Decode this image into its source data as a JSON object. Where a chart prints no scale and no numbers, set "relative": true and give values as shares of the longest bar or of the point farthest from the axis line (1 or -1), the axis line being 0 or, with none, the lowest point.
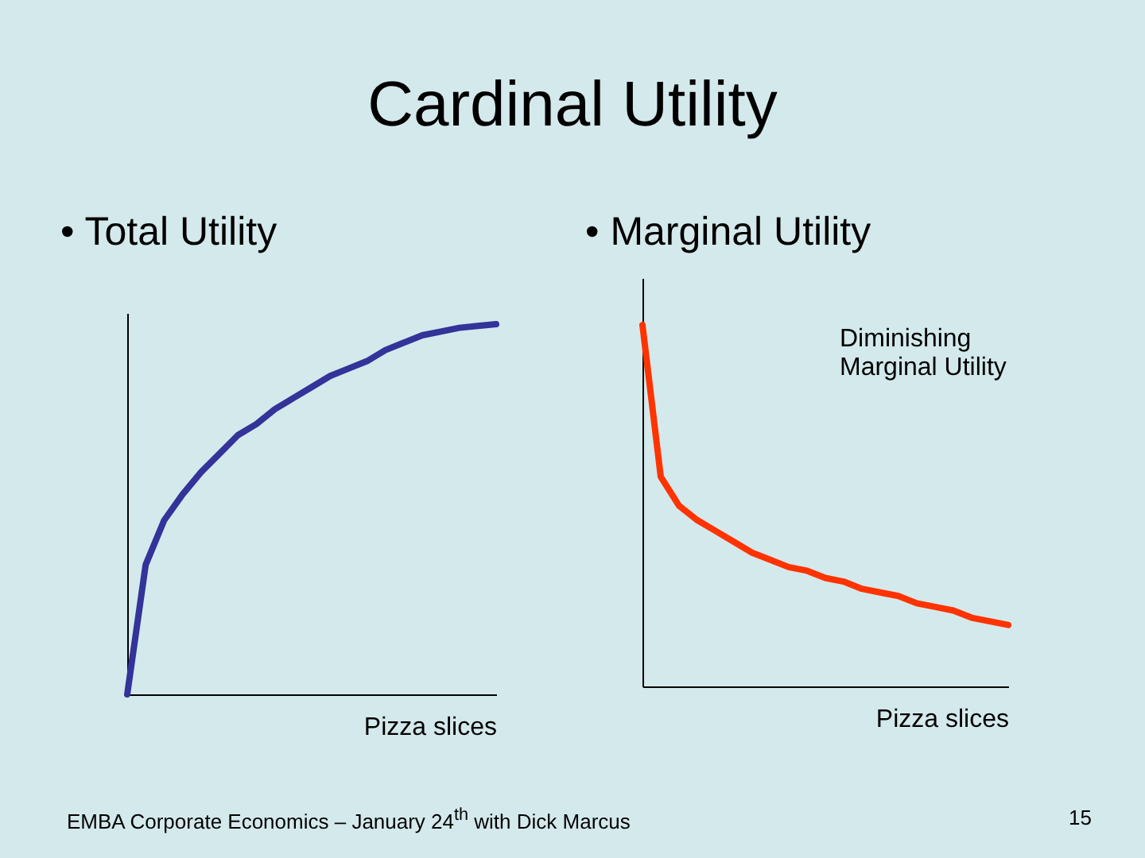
{
  "chart_data": [
    {
      "type": "line",
      "title": "Cardinal Utility",
      "subtitle": "• Total Utility",
      "xlabel": "Pizza slices",
      "relative": true,
      "categories": [
        null,
        null,
        null,
        null,
        null,
        null,
        null,
        null,
        null,
        null,
        null,
        null,
        null,
        null,
        null,
        null,
        null,
        null,
        null,
        null,
        null
      ],
      "series": [
        {
          "color": "#333399",
          "values": [
            0,
            0.35,
            0.47,
            0.54,
            0.6,
            0.65,
            0.7,
            0.73,
            0.77,
            0.8,
            0.83,
            0.86,
            0.88,
            0.9,
            0.93,
            0.95,
            0.97,
            0.98,
            0.99,
            0.995,
            1
          ]
        }
      ],
      "annotations": [
        "EMBA Corporate Economics – January 24$^{th}$ with Dick Marcus"
      ]
    },
    {
      "type": "line",
      "subtitle": "• Marginal Utility",
      "xlabel": "Pizza slices",
      "relative": true,
      "categories": [
        null,
        null,
        null,
        null,
        null,
        null,
        null,
        null,
        null,
        null,
        null,
        null,
        null,
        null,
        null,
        null,
        null,
        null,
        null,
        null,
        null
      ],
      "series": [
        {
          "color": "#ff3300",
          "values": [
            1,
            0.58,
            0.5,
            0.46,
            0.43,
            0.4,
            0.37,
            0.35,
            0.33,
            0.32,
            0.3,
            0.29,
            0.27,
            0.26,
            0.25,
            0.23,
            0.22,
            0.21,
            0.19,
            0.18,
            0.17
          ]
        }
      ],
      "annotations": [
        "Diminishing Marginal Utility",
        "15"
      ]
    }
  ]
}
